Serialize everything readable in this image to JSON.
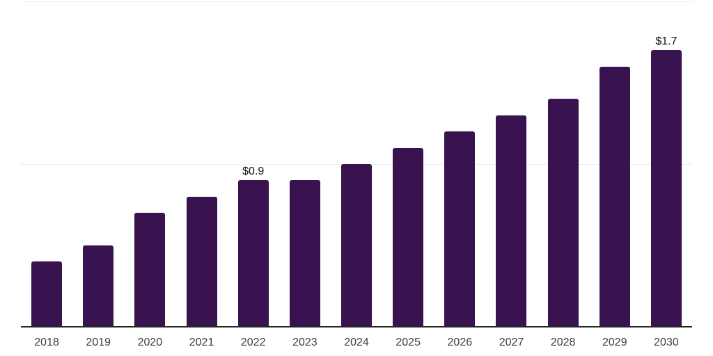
{
  "colors": {
    "background": "#ffffff",
    "bar": "#38134f",
    "axis_line": "#262626",
    "gridline": "#ededed",
    "tick_label": "#3d3d3d",
    "value_label": "#111111"
  },
  "chart_data": {
    "type": "bar",
    "title": "",
    "xlabel": "",
    "ylabel": "",
    "categories": [
      "2018",
      "2019",
      "2020",
      "2021",
      "2022",
      "2023",
      "2024",
      "2025",
      "2026",
      "2027",
      "2028",
      "2029",
      "2030"
    ],
    "values": [
      0.4,
      0.5,
      0.7,
      0.8,
      0.9,
      0.9,
      1.0,
      1.1,
      1.2,
      1.3,
      1.4,
      1.6,
      1.7
    ],
    "data_labels": {
      "2022": "$0.9",
      "2030": "$1.7"
    },
    "ylim": [
      0,
      2.0
    ],
    "gridline_values": [
      1.0,
      2.0
    ],
    "grid": "horizontal-only",
    "legend": "none",
    "bar_color": "#38134f"
  }
}
